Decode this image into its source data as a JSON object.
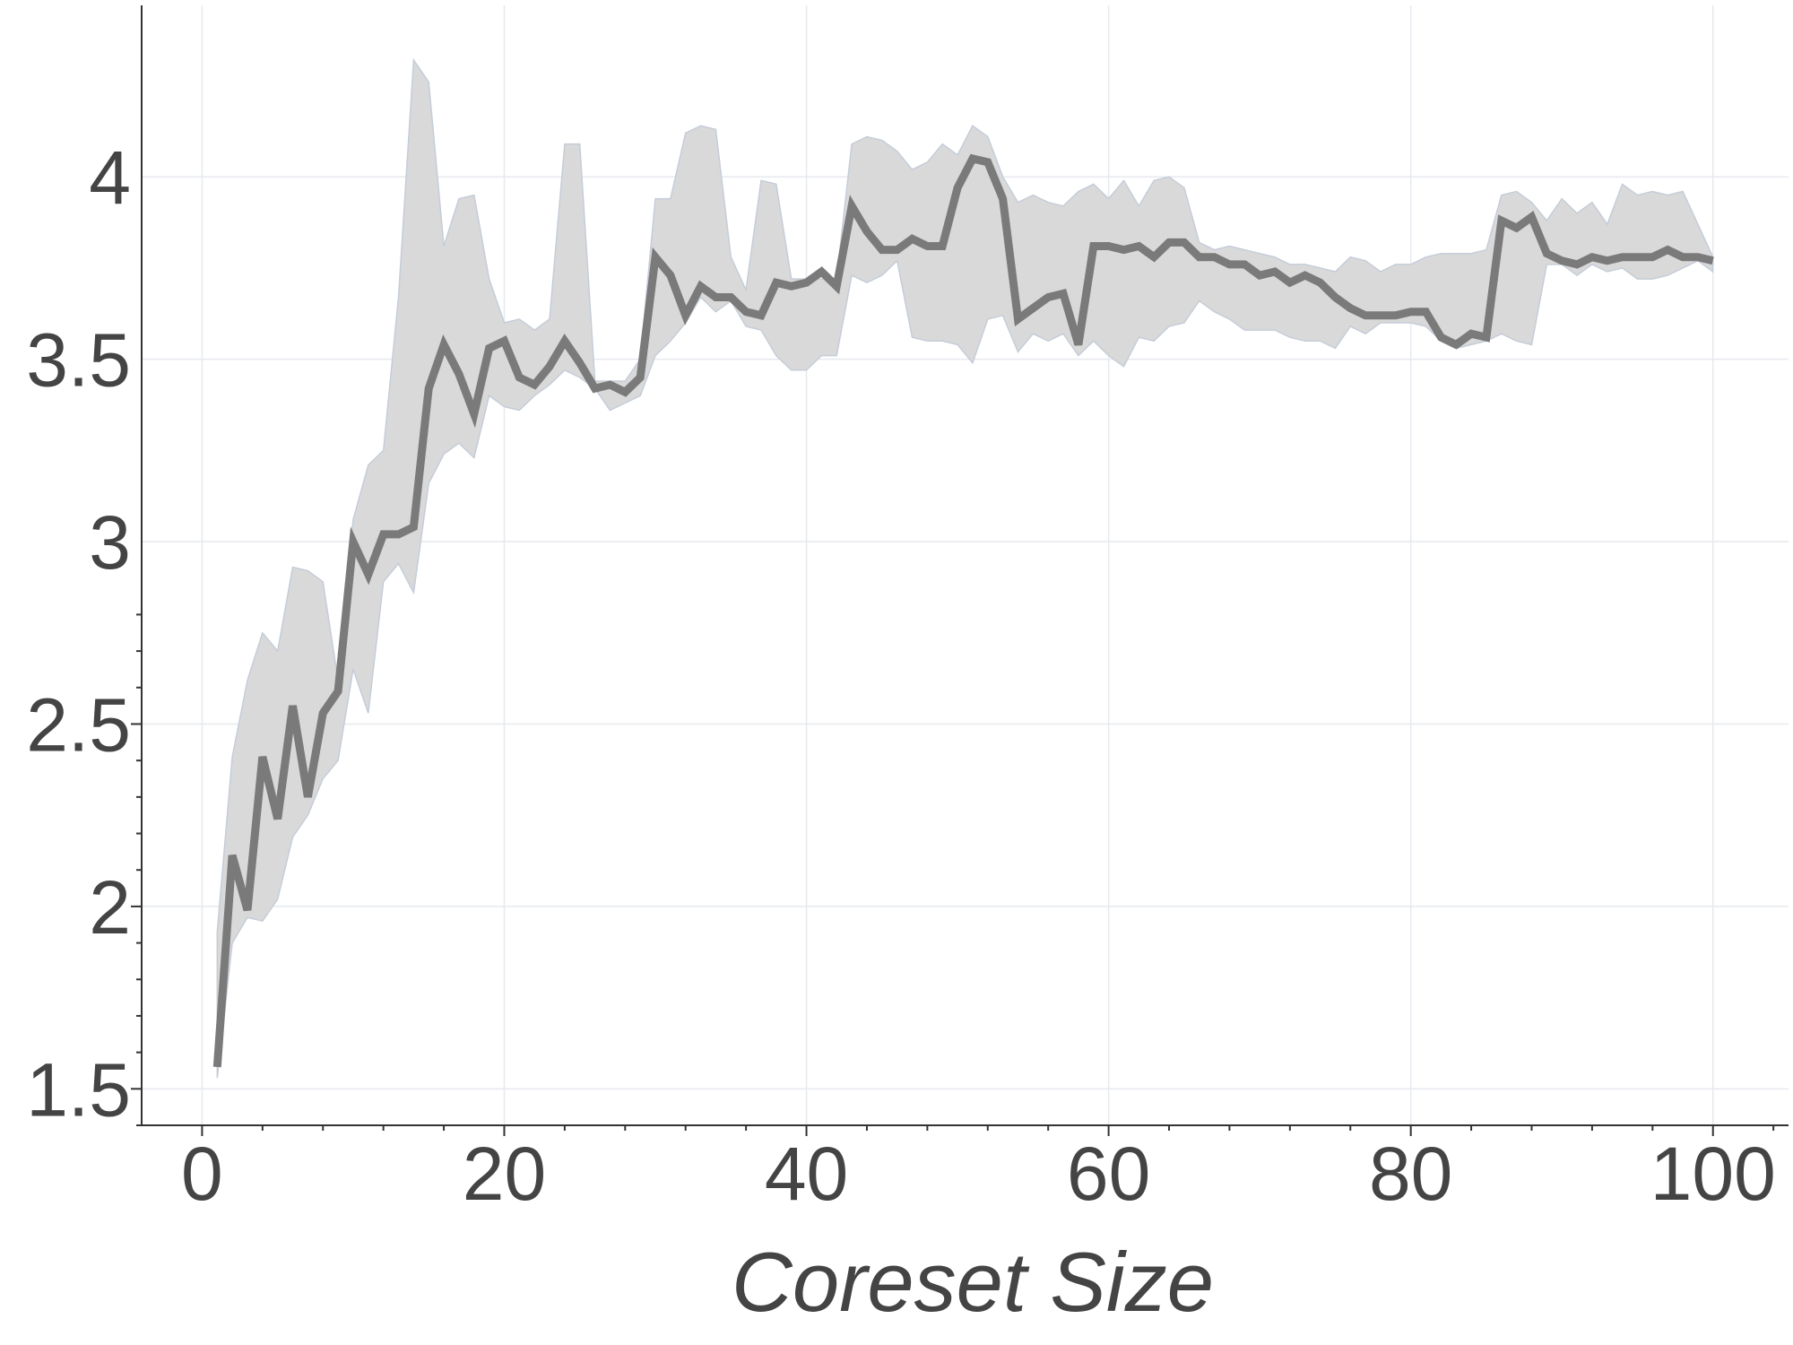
{
  "chart_data": {
    "type": "line",
    "title": "",
    "xlabel": "Coreset Size",
    "ylabel": "",
    "xlim": [
      -4,
      105
    ],
    "ylim": [
      1.4,
      4.47
    ],
    "xticks": [
      0,
      20,
      40,
      60,
      80,
      100
    ],
    "xtick_labels": [
      "0",
      "20",
      "40",
      "60",
      "80",
      "100"
    ],
    "yticks": [
      1.5,
      2,
      2.5,
      3,
      3.5,
      4
    ],
    "ytick_labels": [
      "1.5",
      "2",
      "2.5",
      "3",
      "3.5",
      "4"
    ],
    "grid": true,
    "legend": "none",
    "colors": {
      "line": "#7a7a7a",
      "band": "#d9d9d9",
      "band_edge": "#c5cdd8",
      "grid": "#e6e9ee",
      "axis": "#333333",
      "text": "#444444"
    },
    "series": [
      {
        "x": [
          1,
          2,
          3,
          4,
          5,
          6,
          7,
          8,
          9,
          10,
          11,
          12,
          13,
          14,
          15,
          16,
          17,
          18,
          19,
          20,
          21,
          22,
          23,
          24,
          25,
          26,
          27,
          28,
          29,
          30,
          31,
          32,
          33,
          34,
          35,
          36,
          37,
          38,
          39,
          40,
          41,
          42,
          43,
          44,
          45,
          46,
          47,
          48,
          49,
          50,
          51,
          52,
          53,
          54,
          55,
          56,
          57,
          58,
          59,
          60,
          61,
          62,
          63,
          64,
          65,
          66,
          67,
          68,
          69,
          70,
          71,
          72,
          73,
          74,
          75,
          76,
          77,
          78,
          79,
          80,
          81,
          82,
          83,
          84,
          85,
          86,
          87,
          88,
          89,
          90,
          91,
          92,
          93,
          94,
          95,
          96,
          97,
          98,
          99,
          100
        ],
        "values": [
          1.56,
          2.14,
          1.99,
          2.41,
          2.24,
          2.55,
          2.3,
          2.53,
          2.59,
          3.0,
          2.91,
          3.02,
          3.02,
          3.04,
          3.42,
          3.54,
          3.46,
          3.35,
          3.53,
          3.55,
          3.45,
          3.43,
          3.48,
          3.55,
          3.49,
          3.42,
          3.43,
          3.41,
          3.45,
          3.78,
          3.73,
          3.62,
          3.7,
          3.67,
          3.67,
          3.63,
          3.62,
          3.71,
          3.7,
          3.71,
          3.74,
          3.7,
          3.92,
          3.85,
          3.8,
          3.8,
          3.83,
          3.81,
          3.81,
          3.97,
          4.05,
          4.04,
          3.94,
          3.61,
          3.64,
          3.67,
          3.68,
          3.54,
          3.81,
          3.81,
          3.8,
          3.81,
          3.78,
          3.82,
          3.82,
          3.78,
          3.78,
          3.76,
          3.76,
          3.73,
          3.74,
          3.71,
          3.73,
          3.71,
          3.67,
          3.64,
          3.62,
          3.62,
          3.62,
          3.63,
          3.63,
          3.56,
          3.54,
          3.57,
          3.56,
          3.88,
          3.86,
          3.89,
          3.79,
          3.77,
          3.76,
          3.78,
          3.77,
          3.78,
          3.78,
          3.78,
          3.8,
          3.78,
          3.78,
          3.77
        ],
        "upper": [
          1.93,
          2.41,
          2.62,
          2.75,
          2.7,
          2.93,
          2.92,
          2.89,
          2.62,
          3.06,
          3.21,
          3.25,
          3.67,
          4.32,
          4.26,
          3.81,
          3.94,
          3.95,
          3.72,
          3.6,
          3.61,
          3.58,
          3.61,
          4.09,
          4.09,
          3.44,
          3.44,
          3.44,
          3.5,
          3.94,
          3.94,
          4.12,
          4.14,
          4.13,
          3.78,
          3.69,
          3.99,
          3.98,
          3.72,
          3.72,
          3.72,
          3.72,
          4.09,
          4.11,
          4.1,
          4.07,
          4.02,
          4.04,
          4.09,
          4.06,
          4.14,
          4.11,
          4.0,
          3.93,
          3.95,
          3.93,
          3.92,
          3.96,
          3.98,
          3.94,
          3.99,
          3.92,
          3.99,
          4.0,
          3.97,
          3.82,
          3.8,
          3.81,
          3.8,
          3.79,
          3.78,
          3.76,
          3.76,
          3.75,
          3.74,
          3.78,
          3.77,
          3.74,
          3.76,
          3.76,
          3.78,
          3.79,
          3.79,
          3.79,
          3.8,
          3.95,
          3.96,
          3.93,
          3.88,
          3.94,
          3.9,
          3.93,
          3.87,
          3.98,
          3.95,
          3.96,
          3.95,
          3.96,
          3.87,
          3.78
        ],
        "lower": [
          1.53,
          1.9,
          1.97,
          1.96,
          2.02,
          2.19,
          2.25,
          2.35,
          2.4,
          2.65,
          2.53,
          2.89,
          2.94,
          2.86,
          3.16,
          3.24,
          3.27,
          3.23,
          3.4,
          3.37,
          3.36,
          3.4,
          3.43,
          3.47,
          3.45,
          3.42,
          3.36,
          3.38,
          3.4,
          3.51,
          3.55,
          3.6,
          3.67,
          3.63,
          3.66,
          3.59,
          3.58,
          3.51,
          3.47,
          3.47,
          3.51,
          3.51,
          3.73,
          3.71,
          3.73,
          3.77,
          3.56,
          3.55,
          3.55,
          3.54,
          3.49,
          3.61,
          3.62,
          3.52,
          3.57,
          3.55,
          3.57,
          3.51,
          3.55,
          3.51,
          3.48,
          3.56,
          3.55,
          3.59,
          3.6,
          3.66,
          3.63,
          3.61,
          3.58,
          3.58,
          3.58,
          3.56,
          3.55,
          3.55,
          3.53,
          3.59,
          3.57,
          3.6,
          3.6,
          3.6,
          3.59,
          3.55,
          3.53,
          3.54,
          3.55,
          3.57,
          3.55,
          3.54,
          3.76,
          3.76,
          3.73,
          3.76,
          3.74,
          3.75,
          3.72,
          3.72,
          3.73,
          3.75,
          3.77,
          3.74
        ]
      }
    ]
  }
}
